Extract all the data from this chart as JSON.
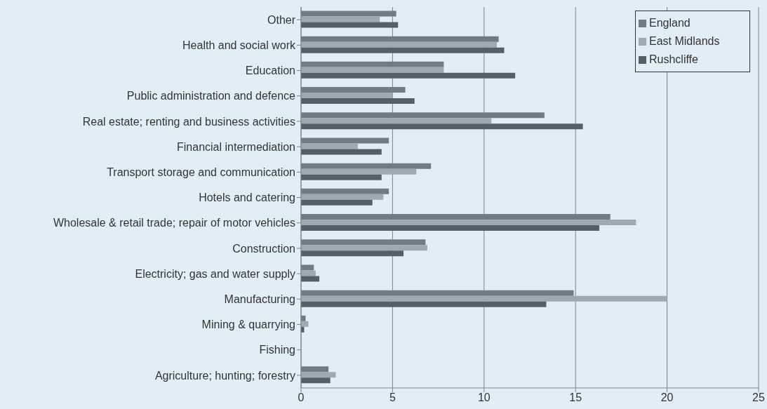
{
  "chart_data": {
    "type": "bar",
    "orientation": "horizontal",
    "categories": [
      "Other",
      "Health and social work",
      "Education",
      "Public administration and defence",
      "Real estate; renting and business activities",
      "Financial intermediation",
      "Transport storage and communication",
      "Hotels and catering",
      "Wholesale & retail trade; repair of motor vehicles",
      "Construction",
      "Electricity; gas and water supply",
      "Manufacturing",
      "Mining & quarrying",
      "Fishing",
      "Agriculture; hunting; forestry"
    ],
    "series": [
      {
        "name": "England",
        "color": "#717b82",
        "values": [
          5.2,
          10.8,
          7.8,
          5.7,
          13.3,
          4.8,
          7.1,
          4.8,
          16.9,
          6.8,
          0.7,
          14.9,
          0.25,
          0,
          1.5
        ]
      },
      {
        "name": "East Midlands",
        "color": "#9eaab1",
        "values": [
          4.3,
          10.7,
          7.8,
          5.0,
          10.4,
          3.1,
          6.3,
          4.5,
          18.3,
          6.9,
          0.8,
          20.0,
          0.4,
          0,
          1.9
        ]
      },
      {
        "name": "Rushcliffe",
        "color": "#555f66",
        "values": [
          5.3,
          11.1,
          11.7,
          6.2,
          15.4,
          4.4,
          4.4,
          3.9,
          16.3,
          5.6,
          1.0,
          13.4,
          0.17,
          0,
          1.6
        ]
      }
    ],
    "xlim": [
      0,
      25
    ],
    "xticks": [
      0,
      5,
      10,
      15,
      20,
      25
    ],
    "grid": "x",
    "legend": "top right"
  }
}
